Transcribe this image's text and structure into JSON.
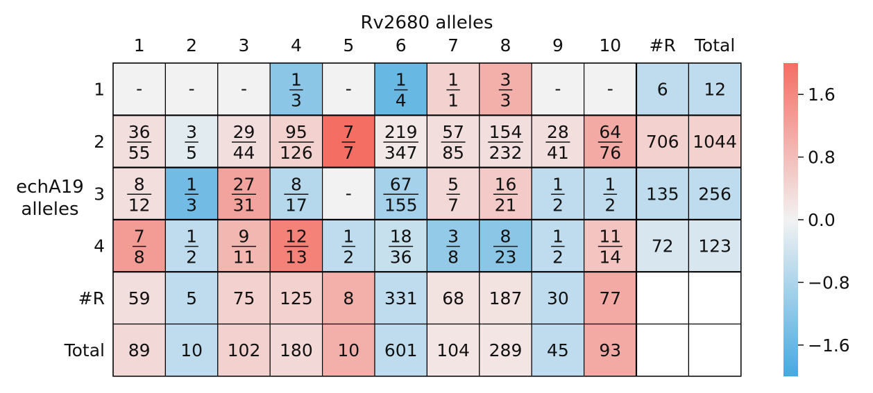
{
  "chart_data": {
    "type": "heatmap",
    "title": "",
    "xlabel": "Rv2680 alleles",
    "ylabel": "echA19 alleles",
    "xlabel_parts": [
      "Rv2680 alleles"
    ],
    "ylabel_parts": [
      "echA19",
      "alleles"
    ],
    "col_labels": [
      "1",
      "2",
      "3",
      "4",
      "5",
      "6",
      "7",
      "8",
      "9",
      "10",
      "#R",
      "Total"
    ],
    "row_labels": [
      "1",
      "2",
      "3",
      "4",
      "#R",
      "Total"
    ],
    "cells": [
      [
        {
          "t": "dash",
          "v": 0.0
        },
        {
          "t": "dash",
          "v": 0.0
        },
        {
          "t": "dash",
          "v": 0.0
        },
        {
          "t": "frac",
          "num": "1",
          "den": "3",
          "v": -1.2
        },
        {
          "t": "dash",
          "v": 0.0
        },
        {
          "t": "frac",
          "num": "1",
          "den": "4",
          "v": -1.6
        },
        {
          "t": "frac",
          "num": "1",
          "den": "1",
          "v": 0.5
        },
        {
          "t": "frac",
          "num": "3",
          "den": "3",
          "v": 1.0
        },
        {
          "t": "dash",
          "v": 0.0
        },
        {
          "t": "dash",
          "v": 0.0
        },
        {
          "t": "num",
          "text": "6",
          "v": -0.6
        },
        {
          "t": "num",
          "text": "12",
          "v": -0.6
        }
      ],
      [
        {
          "t": "frac",
          "num": "36",
          "den": "55",
          "v": 0.3
        },
        {
          "t": "frac",
          "num": "3",
          "den": "5",
          "v": -0.2
        },
        {
          "t": "frac",
          "num": "29",
          "den": "44",
          "v": 0.3
        },
        {
          "t": "frac",
          "num": "95",
          "den": "126",
          "v": 0.5
        },
        {
          "t": "frac",
          "num": "7",
          "den": "7",
          "v": 2.0
        },
        {
          "t": "frac",
          "num": "219",
          "den": "347",
          "v": 0.15
        },
        {
          "t": "frac",
          "num": "57",
          "den": "85",
          "v": 0.3
        },
        {
          "t": "frac",
          "num": "154",
          "den": "232",
          "v": 0.3
        },
        {
          "t": "frac",
          "num": "28",
          "den": "41",
          "v": 0.3
        },
        {
          "t": "frac",
          "num": "64",
          "den": "76",
          "v": 1.1
        },
        {
          "t": "num",
          "text": "706",
          "v": 0.5
        },
        {
          "t": "num",
          "text": "1044",
          "v": 0.5
        }
      ],
      [
        {
          "t": "frac",
          "num": "8",
          "den": "12",
          "v": 0.3
        },
        {
          "t": "frac",
          "num": "1",
          "den": "3",
          "v": -1.5
        },
        {
          "t": "frac",
          "num": "27",
          "den": "31",
          "v": 1.2
        },
        {
          "t": "frac",
          "num": "8",
          "den": "17",
          "v": -0.7
        },
        {
          "t": "dash",
          "v": 0.0
        },
        {
          "t": "frac",
          "num": "67",
          "den": "155",
          "v": -0.9
        },
        {
          "t": "frac",
          "num": "5",
          "den": "7",
          "v": 0.4
        },
        {
          "t": "frac",
          "num": "16",
          "den": "21",
          "v": 0.6
        },
        {
          "t": "frac",
          "num": "1",
          "den": "2",
          "v": -0.6
        },
        {
          "t": "frac",
          "num": "1",
          "den": "2",
          "v": -0.6
        },
        {
          "t": "num",
          "text": "135",
          "v": -0.6
        },
        {
          "t": "num",
          "text": "256",
          "v": -0.6
        }
      ],
      [
        {
          "t": "frac",
          "num": "7",
          "den": "8",
          "v": 1.3
        },
        {
          "t": "frac",
          "num": "1",
          "den": "2",
          "v": -0.6
        },
        {
          "t": "frac",
          "num": "9",
          "den": "11",
          "v": 0.9
        },
        {
          "t": "frac",
          "num": "12",
          "den": "13",
          "v": 1.7
        },
        {
          "t": "frac",
          "num": "1",
          "den": "2",
          "v": -0.6
        },
        {
          "t": "frac",
          "num": "18",
          "den": "36",
          "v": -0.5
        },
        {
          "t": "frac",
          "num": "3",
          "den": "8",
          "v": -1.1
        },
        {
          "t": "frac",
          "num": "8",
          "den": "23",
          "v": -1.2
        },
        {
          "t": "frac",
          "num": "1",
          "den": "2",
          "v": -0.6
        },
        {
          "t": "frac",
          "num": "11",
          "den": "14",
          "v": 0.7
        },
        {
          "t": "num",
          "text": "72",
          "v": -0.3
        },
        {
          "t": "num",
          "text": "123",
          "v": -0.3
        }
      ],
      [
        {
          "t": "num",
          "text": "59",
          "v": 0.3
        },
        {
          "t": "num",
          "text": "5",
          "v": -0.6
        },
        {
          "t": "num",
          "text": "75",
          "v": 0.5
        },
        {
          "t": "num",
          "text": "125",
          "v": 0.5
        },
        {
          "t": "num",
          "text": "8",
          "v": 1.0
        },
        {
          "t": "num",
          "text": "331",
          "v": -0.6
        },
        {
          "t": "num",
          "text": "68",
          "v": 0.25
        },
        {
          "t": "num",
          "text": "187",
          "v": 0.25
        },
        {
          "t": "num",
          "text": "30",
          "v": -0.6
        },
        {
          "t": "num",
          "text": "77",
          "v": 1.1
        },
        {
          "t": "empty"
        },
        {
          "t": "empty"
        }
      ],
      [
        {
          "t": "num",
          "text": "89",
          "v": 0.4
        },
        {
          "t": "num",
          "text": "10",
          "v": -0.6
        },
        {
          "t": "num",
          "text": "102",
          "v": 0.5
        },
        {
          "t": "num",
          "text": "180",
          "v": 0.4
        },
        {
          "t": "num",
          "text": "10",
          "v": 1.0
        },
        {
          "t": "num",
          "text": "601",
          "v": -0.6
        },
        {
          "t": "num",
          "text": "104",
          "v": 0.2
        },
        {
          "t": "num",
          "text": "289",
          "v": 0.2
        },
        {
          "t": "num",
          "text": "45",
          "v": -0.6
        },
        {
          "t": "num",
          "text": "93",
          "v": 1.1
        },
        {
          "t": "empty"
        },
        {
          "t": "empty"
        }
      ]
    ],
    "dash_text": "-",
    "colorbar": {
      "range": [
        -2.0,
        2.0
      ],
      "ticks": [
        1.6,
        0.8,
        0.0,
        -0.8,
        -1.6
      ],
      "tick_labels": [
        "1.6",
        "0.8",
        "0.0",
        "−0.8",
        "−1.6"
      ],
      "colors": {
        "negative": "#46a9e0",
        "center": "#f2f2f2",
        "positive": "#f46e64"
      }
    },
    "grid": true,
    "legend": "colorbar right"
  }
}
